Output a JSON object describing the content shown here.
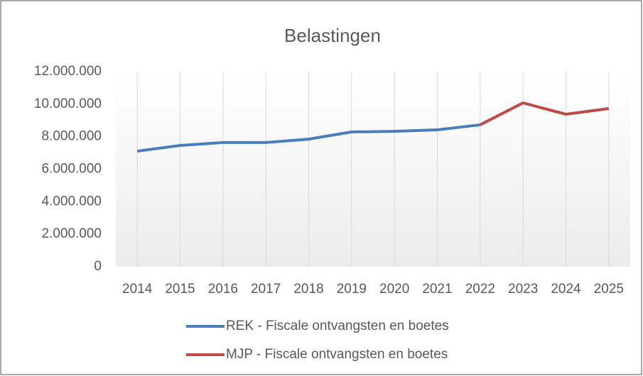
{
  "chart_data": {
    "type": "line",
    "title": "Belastingen",
    "categories": [
      "2014",
      "2015",
      "2016",
      "2017",
      "2018",
      "2019",
      "2020",
      "2021",
      "2022",
      "2023",
      "2024",
      "2025"
    ],
    "series": [
      {
        "name": "REK - Fiscale ontvangsten en boetes",
        "color": "#4a7ebb",
        "values": [
          7110000,
          7460000,
          7640000,
          7640000,
          7850000,
          8290000,
          8330000,
          8420000,
          8730000,
          null,
          null,
          null
        ]
      },
      {
        "name": "MJP - Fiscale ontvangsten en boetes",
        "color": "#be4b48",
        "values": [
          null,
          null,
          null,
          null,
          null,
          null,
          null,
          null,
          8730000,
          10080000,
          9380000,
          9730000
        ]
      }
    ],
    "ylim": [
      0,
      12000000
    ],
    "yticks": [
      0,
      {
        "value": 2000000,
        "label": "2.000.000"
      },
      {
        "value": 4000000,
        "label": "4.000.000"
      },
      {
        "value": 6000000,
        "label": "6.000.000"
      },
      {
        "value": 8000000,
        "label": "8.000.000"
      },
      {
        "value": 10000000,
        "label": "10.000.000"
      },
      {
        "value": 12000000,
        "label": "12.000.000"
      }
    ],
    "grid": "vertical"
  }
}
